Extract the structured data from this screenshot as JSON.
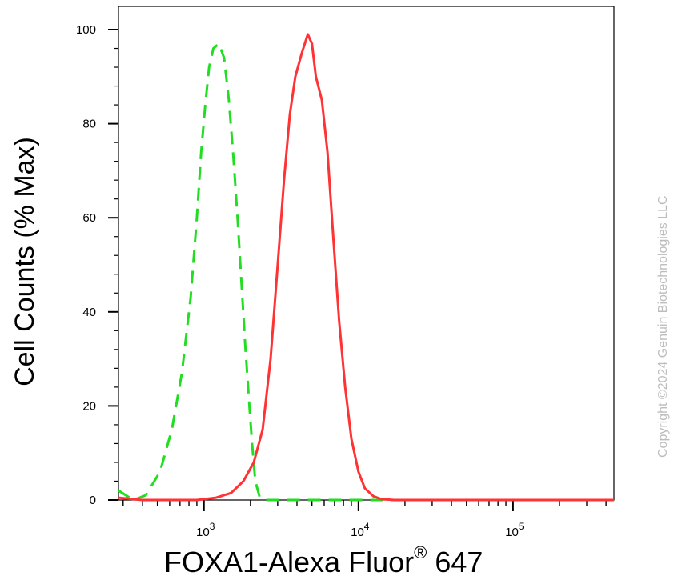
{
  "chart_data": {
    "type": "line",
    "x_scale": "log",
    "xlim": [
      280,
      450000
    ],
    "ylim": [
      0,
      100
    ],
    "x_ticks": [
      {
        "value": 1000,
        "base": "10",
        "exp": "3"
      },
      {
        "value": 10000,
        "base": "10",
        "exp": "4"
      },
      {
        "value": 100000,
        "base": "10",
        "exp": "5"
      }
    ],
    "y_ticks": [
      0,
      20,
      40,
      60,
      80,
      100
    ],
    "xlabel_main": "FOXA1-Alexa Fluor",
    "xlabel_reg": "®",
    "xlabel_tail": " 647",
    "ylabel": "Cell Counts (% Max)",
    "watermark": "Copyright ©2024 Genuin Biotechnologies LLC",
    "grid": false,
    "series": [
      {
        "style": "dashed",
        "color": "#22dd22",
        "points": [
          [
            280,
            2
          ],
          [
            350,
            0
          ],
          [
            420,
            1
          ],
          [
            520,
            6
          ],
          [
            620,
            15
          ],
          [
            720,
            27
          ],
          [
            820,
            43
          ],
          [
            900,
            60
          ],
          [
            960,
            74
          ],
          [
            1020,
            84
          ],
          [
            1080,
            92
          ],
          [
            1150,
            96
          ],
          [
            1250,
            97
          ],
          [
            1350,
            94
          ],
          [
            1450,
            85
          ],
          [
            1550,
            73
          ],
          [
            1650,
            60
          ],
          [
            1750,
            46
          ],
          [
            1850,
            33
          ],
          [
            1950,
            22
          ],
          [
            2050,
            12
          ],
          [
            2150,
            4
          ],
          [
            2300,
            0.5
          ],
          [
            2500,
            0
          ],
          [
            450000,
            0
          ]
        ]
      },
      {
        "style": "solid",
        "color": "#ff3333",
        "points": [
          [
            280,
            0.5
          ],
          [
            400,
            0
          ],
          [
            600,
            0
          ],
          [
            900,
            0
          ],
          [
            1200,
            0.5
          ],
          [
            1500,
            1.5
          ],
          [
            1800,
            4
          ],
          [
            2100,
            8
          ],
          [
            2400,
            15
          ],
          [
            2700,
            30
          ],
          [
            3000,
            50
          ],
          [
            3300,
            68
          ],
          [
            3600,
            82
          ],
          [
            3900,
            90
          ],
          [
            4300,
            95
          ],
          [
            4700,
            99
          ],
          [
            5000,
            97
          ],
          [
            5300,
            90
          ],
          [
            5800,
            85
          ],
          [
            6300,
            74
          ],
          [
            6900,
            55
          ],
          [
            7500,
            38
          ],
          [
            8200,
            24
          ],
          [
            9000,
            13
          ],
          [
            10000,
            6
          ],
          [
            11000,
            2.5
          ],
          [
            12500,
            0.8
          ],
          [
            14000,
            0.2
          ],
          [
            17000,
            0
          ],
          [
            450000,
            0
          ]
        ]
      }
    ]
  }
}
